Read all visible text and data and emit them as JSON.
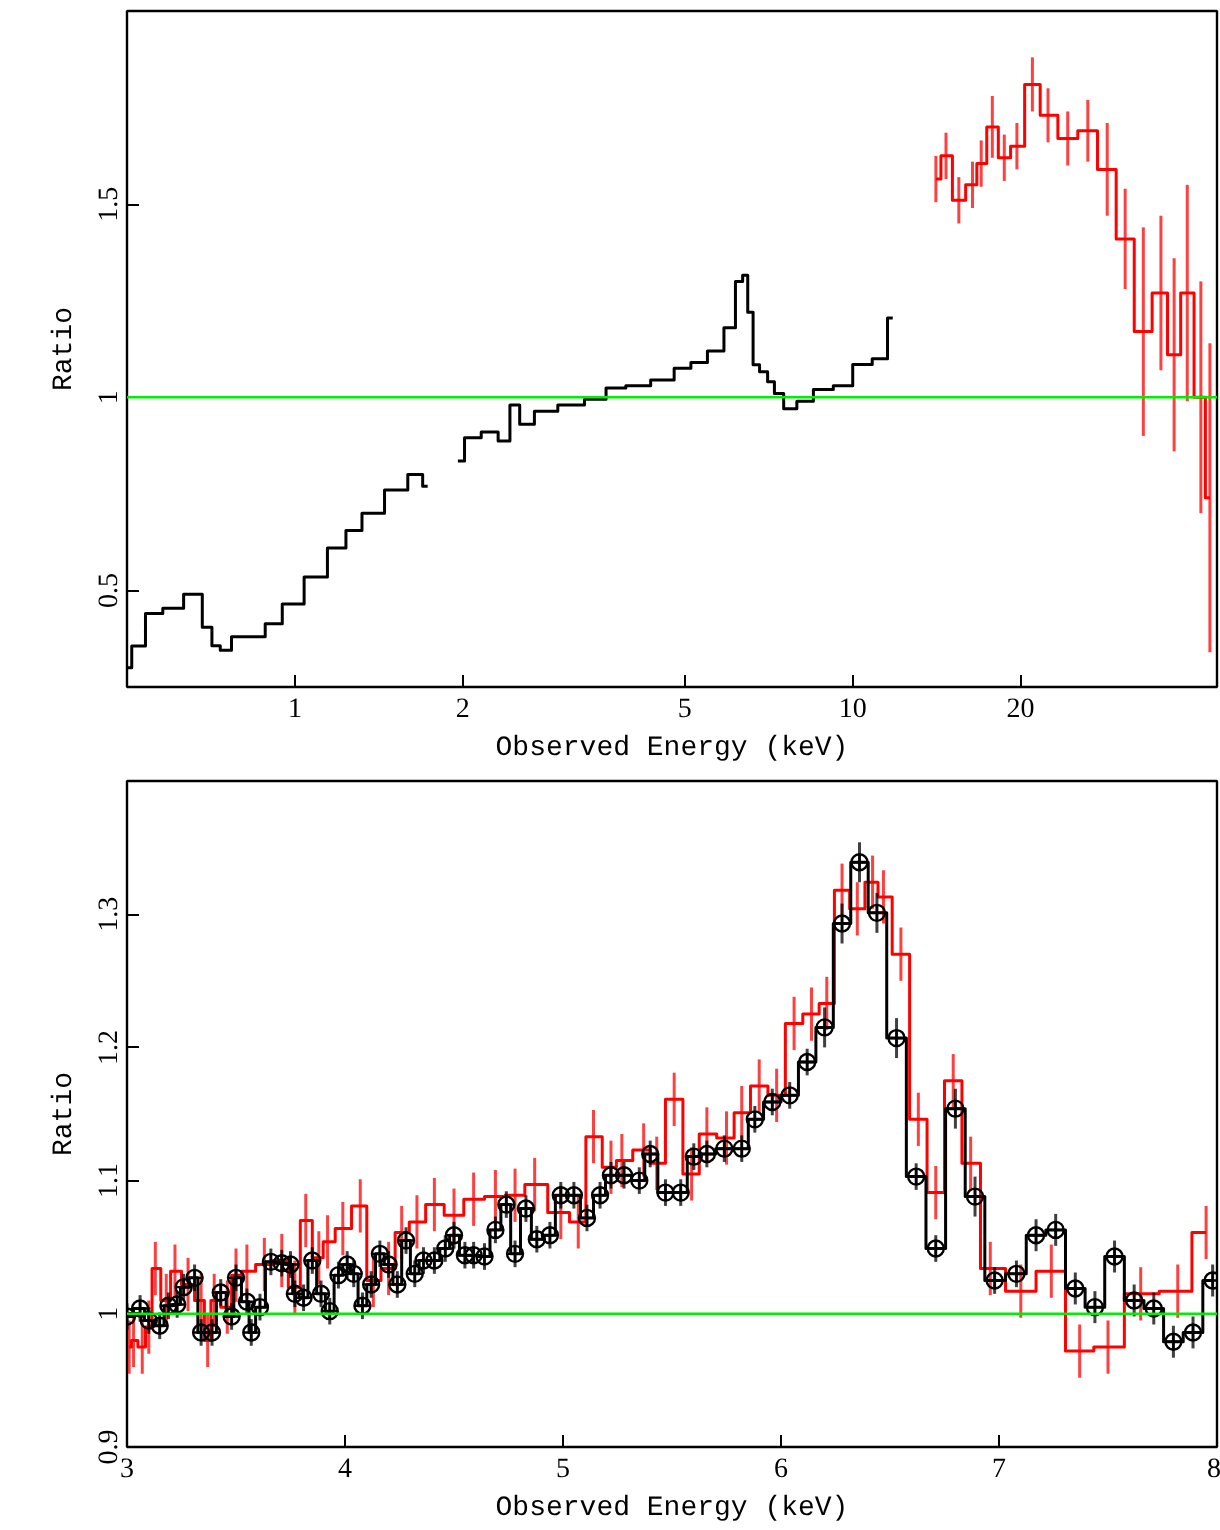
{
  "chart_data": [
    {
      "type": "step",
      "log": "x",
      "xlim": [
        0.5,
        45
      ],
      "xticks": [
        1,
        2,
        5,
        10,
        20
      ],
      "ylim": [
        0.25,
        2
      ],
      "yticks": [
        0.5,
        1,
        1.5
      ],
      "xlabel": "Observed Energy (keV)",
      "ylabel": "Ratio",
      "ref_lines": [
        {
          "axis": "y",
          "value": 1,
          "color": "#00ee00"
        }
      ],
      "series": [
        {
          "color": "#000000",
          "x": [
            0.5,
            0.52,
            0.56,
            0.6,
            0.665,
            0.7,
            0.72,
            0.75,
            0.79,
            0.86,
            0.91,
            0.99,
            1.09,
            1.2,
            1.27,
            1.37,
            1.53,
            1.66,
            1.73,
            1.85,
            1.96,
            2.07,
            2.25,
            2.38,
            2.48,
            2.58,
            2.8,
            3.13,
            3.49,
            3.74,
            4.11,
            4.59,
            4.99,
            5.27,
            5.72,
            6.04,
            6.29,
            6.41,
            6.56,
            6.7,
            6.92,
            7.16,
            7.32,
            7.73,
            8.16,
            8.86,
            9.62,
            10.4,
            11.3,
            11.8
          ],
          "values": [
            0.3,
            0.356,
            0.44,
            0.454,
            0.49,
            0.405,
            0.357,
            0.345,
            0.38,
            0.38,
            0.414,
            0.465,
            0.535,
            0.61,
            0.655,
            0.7,
            0.76,
            0.8,
            0.77,
            null,
            0.835,
            0.895,
            0.91,
            0.887,
            0.98,
            0.93,
            0.964,
            0.98,
            0.995,
            1.024,
            1.03,
            1.045,
            1.075,
            1.09,
            1.12,
            1.18,
            1.3,
            1.316,
            1.22,
            1.084,
            1.066,
            1.04,
            1.01,
            0.97,
            0.99,
            1.02,
            1.03,
            1.085,
            1.1,
            1.205
          ]
        },
        {
          "color": "#ff0000",
          "x": [
            14.1,
            14.7,
            15.5,
            16.4,
            17.0,
            17.8,
            18.7,
            19.7,
            21.0,
            22.4,
            24.3,
            26.4,
            28.6,
            30.8,
            33.2,
            35.7,
            37.7,
            39.8,
            42.1,
            43.7
          ],
          "values": [
            1.565,
            1.625,
            1.51,
            1.55,
            1.605,
            1.7,
            1.62,
            1.65,
            1.81,
            1.73,
            1.67,
            1.69,
            1.59,
            1.41,
            1.17,
            1.27,
            1.11,
            1.27,
            1.0,
            0.74
          ],
          "errors": [
            0.06,
            0.06,
            0.06,
            0.06,
            0.06,
            0.08,
            0.06,
            0.06,
            0.07,
            0.07,
            0.07,
            0.08,
            0.12,
            0.13,
            0.27,
            0.2,
            0.25,
            0.28,
            0.3,
            0.4
          ]
        }
      ]
    },
    {
      "type": "step",
      "xlim": [
        3,
        8
      ],
      "xticks": [
        3,
        4,
        5,
        6,
        7,
        8
      ],
      "ylim": [
        0.9,
        1.4
      ],
      "yticks": [
        0.9,
        1,
        1.1,
        1.2,
        1.3
      ],
      "xlabel": "Observed Energy (keV)",
      "ylabel": "Ratio",
      "ref_lines": [
        {
          "axis": "y",
          "value": 1,
          "color": "#00ee00"
        }
      ],
      "series": [
        {
          "color": "#ff0000",
          "x": [
            3.01,
            3.03,
            3.07,
            3.1,
            3.13,
            3.18,
            3.22,
            3.28,
            3.34,
            3.37,
            3.4,
            3.46,
            3.5,
            3.55,
            3.63,
            3.71,
            3.77,
            3.82,
            3.88,
            3.92,
            3.99,
            4.07,
            4.13,
            4.2,
            4.26,
            4.33,
            4.41,
            4.5,
            4.59,
            4.69,
            4.78,
            4.87,
            4.99,
            5.07,
            5.14,
            5.22,
            5.27,
            5.37,
            5.43,
            5.51,
            5.59,
            5.66,
            5.75,
            5.82,
            5.9,
            5.98,
            6.06,
            6.14,
            6.21,
            6.28,
            6.35,
            6.42,
            6.47,
            6.55,
            6.63,
            6.71,
            6.79,
            6.87,
            6.96,
            7.1,
            7.24,
            7.37,
            7.5,
            7.65,
            7.82,
            7.95
          ],
          "values": [
            0.975,
            0.98,
            0.975,
            0.99,
            1.034,
            1.01,
            1.032,
            1.022,
            1.01,
            0.98,
            1.01,
            1.005,
            1.029,
            1.032,
            1.037,
            1.04,
            1.02,
            1.07,
            1.042,
            1.054,
            1.064,
            1.081,
            1.025,
            1.034,
            1.061,
            1.069,
            1.082,
            1.074,
            1.086,
            1.088,
            1.089,
            1.097,
            1.076,
            1.069,
            1.133,
            1.11,
            1.115,
            1.123,
            1.113,
            1.161,
            1.105,
            1.135,
            1.132,
            1.151,
            1.171,
            1.164,
            1.218,
            1.225,
            1.233,
            1.318,
            1.304,
            1.324,
            1.313,
            1.27,
            1.146,
            1.091,
            1.175,
            1.113,
            1.034,
            1.017,
            1.032,
            0.972,
            0.975,
            1.015,
            1.017,
            1.061
          ],
          "errors": [
            0.02,
            0.02,
            0.02,
            0.02,
            0.02,
            0.02,
            0.02,
            0.02,
            0.02,
            0.02,
            0.02,
            0.02,
            0.02,
            0.02,
            0.02,
            0.02,
            0.02,
            0.02,
            0.02,
            0.02,
            0.02,
            0.02,
            0.02,
            0.02,
            0.02,
            0.02,
            0.02,
            0.02,
            0.02,
            0.02,
            0.02,
            0.02,
            0.02,
            0.02,
            0.02,
            0.02,
            0.02,
            0.02,
            0.02,
            0.02,
            0.02,
            0.02,
            0.02,
            0.02,
            0.02,
            0.02,
            0.02,
            0.02,
            0.02,
            0.02,
            0.02,
            0.02,
            0.02,
            0.02,
            0.02,
            0.02,
            0.02,
            0.02,
            0.02,
            0.02,
            0.02,
            0.02,
            0.02,
            0.02,
            0.02,
            0.02
          ]
        },
        {
          "color": "#000000",
          "marker": "circle",
          "x": [
            3.0,
            3.06,
            3.1,
            3.15,
            3.19,
            3.23,
            3.26,
            3.31,
            3.34,
            3.39,
            3.43,
            3.48,
            3.5,
            3.55,
            3.57,
            3.61,
            3.66,
            3.71,
            3.75,
            3.77,
            3.81,
            3.85,
            3.89,
            3.93,
            3.97,
            4.01,
            4.04,
            4.08,
            4.12,
            4.16,
            4.2,
            4.24,
            4.28,
            4.32,
            4.36,
            4.41,
            4.46,
            4.5,
            4.55,
            4.59,
            4.64,
            4.69,
            4.74,
            4.78,
            4.83,
            4.88,
            4.94,
            4.99,
            5.05,
            5.11,
            5.17,
            5.22,
            5.28,
            5.35,
            5.4,
            5.47,
            5.54,
            5.6,
            5.66,
            5.74,
            5.82,
            5.88,
            5.96,
            6.04,
            6.12,
            6.2,
            6.28,
            6.36,
            6.44,
            6.53,
            6.62,
            6.71,
            6.8,
            6.89,
            6.98,
            7.08,
            7.17,
            7.26,
            7.35,
            7.44,
            7.53,
            7.62,
            7.71,
            7.8,
            7.89,
            7.98
          ],
          "values": [
            0.998,
            1.004,
            0.995,
            0.991,
            1.006,
            1.007,
            1.02,
            1.027,
            0.986,
            0.986,
            1.016,
            0.998,
            1.027,
            1.009,
            0.986,
            1.005,
            1.039,
            1.038,
            1.037,
            1.015,
            1.012,
            1.04,
            1.015,
            1.002,
            1.029,
            1.037,
            1.03,
            1.006,
            1.022,
            1.045,
            1.037,
            1.022,
            1.055,
            1.03,
            1.04,
            1.04,
            1.049,
            1.059,
            1.044,
            1.044,
            1.043,
            1.063,
            1.082,
            1.045,
            1.079,
            1.056,
            1.059,
            1.089,
            1.089,
            1.072,
            1.089,
            1.104,
            1.104,
            1.1,
            1.12,
            1.091,
            1.091,
            1.118,
            1.12,
            1.124,
            1.124,
            1.146,
            1.159,
            1.164,
            1.189,
            1.215,
            1.293,
            1.339,
            1.301,
            1.207,
            1.103,
            1.049,
            1.154,
            1.088,
            1.025,
            1.03,
            1.059,
            1.063,
            1.019,
            1.005,
            1.043,
            1.01,
            1.004,
            0.979,
            0.986,
            1.025
          ],
          "errors": [
            0.01,
            0.01,
            0.01,
            0.01,
            0.01,
            0.01,
            0.01,
            0.01,
            0.01,
            0.01,
            0.01,
            0.01,
            0.01,
            0.01,
            0.01,
            0.01,
            0.01,
            0.01,
            0.01,
            0.01,
            0.01,
            0.01,
            0.01,
            0.01,
            0.01,
            0.01,
            0.01,
            0.01,
            0.01,
            0.01,
            0.01,
            0.01,
            0.01,
            0.01,
            0.01,
            0.01,
            0.01,
            0.01,
            0.01,
            0.01,
            0.01,
            0.01,
            0.01,
            0.01,
            0.01,
            0.01,
            0.01,
            0.01,
            0.01,
            0.01,
            0.01,
            0.01,
            0.01,
            0.01,
            0.01,
            0.01,
            0.01,
            0.01,
            0.01,
            0.01,
            0.01,
            0.01,
            0.01,
            0.01,
            0.01,
            0.015,
            0.015,
            0.015,
            0.015,
            0.015,
            0.01,
            0.01,
            0.015,
            0.015,
            0.01,
            0.01,
            0.012,
            0.012,
            0.012,
            0.012,
            0.012,
            0.012,
            0.012,
            0.012,
            0.012,
            0.012
          ]
        }
      ]
    }
  ]
}
